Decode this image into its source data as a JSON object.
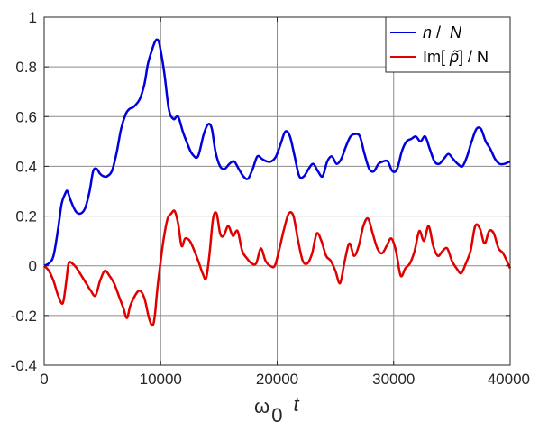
{
  "chart_data": {
    "type": "line",
    "xlabel_symbol": "ω",
    "xlabel_subscript": "0",
    "xlabel_var": "t",
    "xlim": [
      0,
      40000
    ],
    "ylim": [
      -0.4,
      1
    ],
    "grid": true,
    "legend_position": "top-right",
    "x_ticks": [
      0,
      10000,
      20000,
      30000,
      40000
    ],
    "x_tick_labels": [
      "0",
      "10000",
      "20000",
      "30000",
      "40000"
    ],
    "y_ticks": [
      -0.4,
      -0.2,
      0,
      0.2,
      0.4,
      0.6,
      0.8,
      1
    ],
    "y_tick_labels": [
      "-0.4",
      "-0.2",
      "0",
      "0.2",
      "0.4",
      "0.6",
      "0.8",
      "1"
    ],
    "series": [
      {
        "name": "n /  N",
        "legend_parts": [
          "n",
          " / ",
          " N"
        ],
        "color": "#0000dd",
        "x": [
          0,
          400,
          800,
          1200,
          1500,
          1800,
          2000,
          2300,
          2700,
          3100,
          3500,
          3900,
          4200,
          4500,
          4800,
          5100,
          5400,
          5800,
          6200,
          6600,
          7000,
          7300,
          7700,
          8200,
          8600,
          8900,
          9200,
          9500,
          9700,
          9900,
          10300,
          10700,
          11100,
          11500,
          11900,
          12300,
          12700,
          13200,
          13700,
          14100,
          14400,
          14700,
          15100,
          15500,
          15900,
          16300,
          16700,
          17100,
          17500,
          17900,
          18300,
          18700,
          19100,
          19500,
          19900,
          20300,
          20700,
          21100,
          21500,
          21900,
          22300,
          22700,
          23100,
          23500,
          23900,
          24300,
          24700,
          25100,
          25500,
          25900,
          26300,
          26700,
          27100,
          27500,
          27900,
          28300,
          28700,
          29100,
          29500,
          29900,
          30300,
          30700,
          31100,
          31500,
          31900,
          32300,
          32700,
          33100,
          33500,
          33900,
          34300,
          34700,
          35100,
          35500,
          35900,
          36300,
          36700,
          37100,
          37500,
          37900,
          38300,
          38700,
          39100,
          39500,
          40000
        ],
        "y": [
          0,
          0.01,
          0.04,
          0.15,
          0.25,
          0.29,
          0.3,
          0.26,
          0.22,
          0.21,
          0.23,
          0.3,
          0.38,
          0.39,
          0.37,
          0.36,
          0.36,
          0.38,
          0.45,
          0.55,
          0.61,
          0.63,
          0.64,
          0.67,
          0.73,
          0.81,
          0.86,
          0.9,
          0.91,
          0.89,
          0.78,
          0.63,
          0.59,
          0.6,
          0.54,
          0.49,
          0.45,
          0.44,
          0.53,
          0.57,
          0.55,
          0.46,
          0.4,
          0.39,
          0.41,
          0.42,
          0.39,
          0.36,
          0.35,
          0.39,
          0.44,
          0.43,
          0.42,
          0.42,
          0.44,
          0.49,
          0.54,
          0.52,
          0.44,
          0.36,
          0.36,
          0.39,
          0.41,
          0.38,
          0.36,
          0.42,
          0.44,
          0.41,
          0.43,
          0.48,
          0.52,
          0.53,
          0.52,
          0.45,
          0.39,
          0.38,
          0.41,
          0.42,
          0.42,
          0.38,
          0.39,
          0.46,
          0.5,
          0.51,
          0.52,
          0.5,
          0.52,
          0.47,
          0.42,
          0.41,
          0.43,
          0.45,
          0.43,
          0.41,
          0.4,
          0.44,
          0.5,
          0.55,
          0.55,
          0.5,
          0.47,
          0.43,
          0.41,
          0.41,
          0.42
        ]
      },
      {
        "name": "Im[  p̃] / N",
        "legend_parts": [
          "Im[ ",
          "p̃",
          "] / N"
        ],
        "color": "#e00000",
        "x": [
          0,
          400,
          800,
          1200,
          1600,
          1900,
          2100,
          2400,
          2800,
          3200,
          3600,
          4000,
          4400,
          4800,
          5200,
          5600,
          6000,
          6400,
          6800,
          7100,
          7400,
          7800,
          8200,
          8600,
          9000,
          9300,
          9500,
          9700,
          10000,
          10300,
          10600,
          10900,
          11200,
          11500,
          11800,
          12100,
          12500,
          12900,
          13300,
          13600,
          13900,
          14200,
          14500,
          14800,
          15100,
          15400,
          15800,
          16200,
          16600,
          17000,
          17400,
          17800,
          18200,
          18600,
          19000,
          19400,
          19800,
          20200,
          20600,
          21000,
          21400,
          21800,
          22200,
          22600,
          23000,
          23400,
          23800,
          24200,
          24600,
          25000,
          25400,
          25800,
          26200,
          26600,
          27000,
          27400,
          27800,
          28200,
          28600,
          29000,
          29400,
          29800,
          30200,
          30600,
          31000,
          31400,
          31800,
          32200,
          32600,
          33000,
          33400,
          33800,
          34200,
          34600,
          35000,
          35400,
          35800,
          36200,
          36600,
          37000,
          37400,
          37800,
          38200,
          38600,
          39000,
          39400,
          40000
        ],
        "y": [
          0,
          -0.02,
          -0.06,
          -0.12,
          -0.15,
          -0.06,
          0.01,
          0.01,
          -0.01,
          -0.04,
          -0.07,
          -0.1,
          -0.12,
          -0.06,
          -0.02,
          -0.04,
          -0.07,
          -0.12,
          -0.17,
          -0.21,
          -0.16,
          -0.12,
          -0.1,
          -0.13,
          -0.21,
          -0.24,
          -0.2,
          -0.1,
          0.02,
          0.12,
          0.19,
          0.21,
          0.22,
          0.17,
          0.08,
          0.11,
          0.1,
          0.06,
          0.01,
          -0.03,
          -0.05,
          0.05,
          0.19,
          0.21,
          0.13,
          0.12,
          0.16,
          0.12,
          0.14,
          0.06,
          0.03,
          0.01,
          0.01,
          0.07,
          0.02,
          0,
          0,
          0.07,
          0.15,
          0.21,
          0.2,
          0.1,
          0.02,
          0.01,
          0.05,
          0.13,
          0.1,
          0.04,
          0.02,
          -0.02,
          -0.07,
          0.02,
          0.09,
          0.04,
          0.08,
          0.16,
          0.19,
          0.13,
          0.07,
          0.05,
          0.08,
          0.11,
          0.06,
          -0.04,
          -0.01,
          0.01,
          0.06,
          0.14,
          0.1,
          0.16,
          0.08,
          0.04,
          0.06,
          0.07,
          0.02,
          -0.01,
          -0.03,
          0.01,
          0.06,
          0.16,
          0.15,
          0.09,
          0.14,
          0.13,
          0.07,
          0.05,
          -0.01
        ]
      }
    ]
  }
}
